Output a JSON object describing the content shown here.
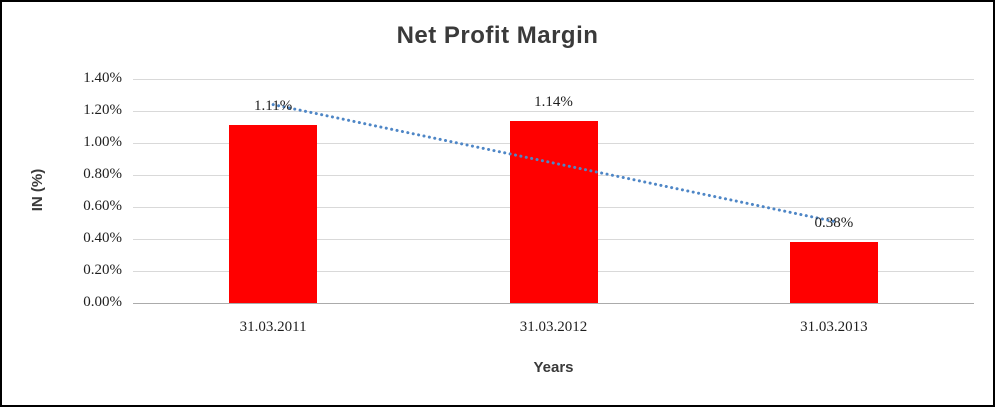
{
  "chart_data": {
    "type": "bar",
    "title": "Net Profit Margin",
    "xlabel": "Years",
    "ylabel": "IN (%)",
    "categories": [
      "31.03.2011",
      "31.03.2012",
      "31.03.2013"
    ],
    "values": [
      1.11,
      1.14,
      0.38
    ],
    "data_labels": [
      "1.11%",
      "1.14%",
      "0.38%"
    ],
    "y_ticks": [
      "1.40%",
      "1.20%",
      "1.00%",
      "0.80%",
      "0.60%",
      "0.40%",
      "0.20%",
      "0.00%"
    ],
    "ylim": [
      0,
      1.4
    ],
    "grid": true,
    "legend": "none",
    "trendline": {
      "style": "dotted",
      "start_value": 1.24,
      "end_value": 0.51
    },
    "colors": {
      "bar": "#ff0000",
      "trendline": "#4e86c6",
      "gridline": "#d9d9d9",
      "axis_line": "#ababab",
      "title_text": "#3a3a3a",
      "tick_text": "#1f1f1f"
    }
  }
}
